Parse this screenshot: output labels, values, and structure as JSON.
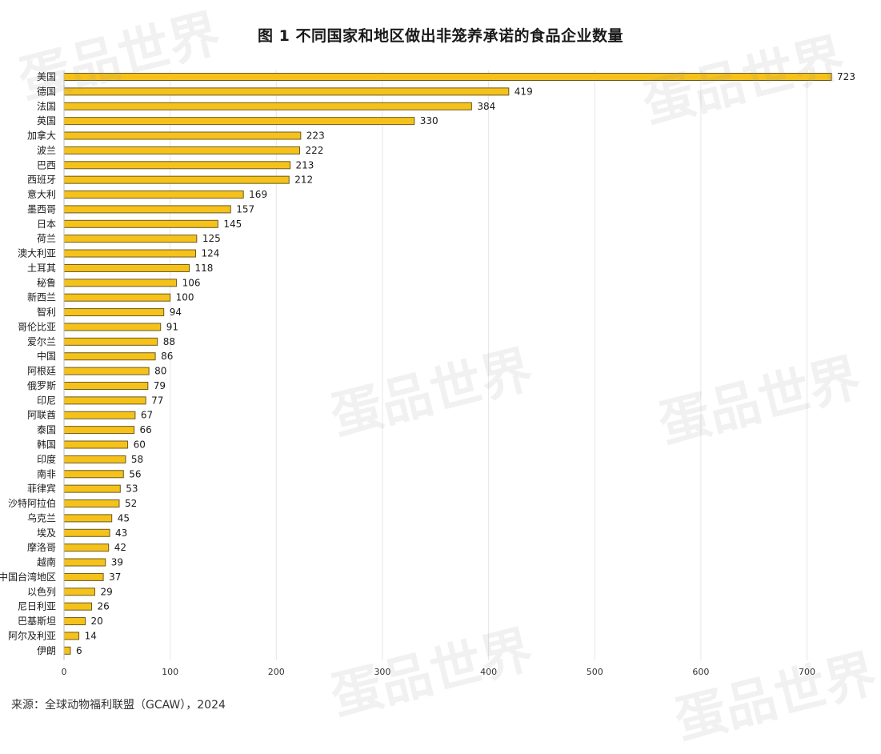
{
  "colors": {
    "bar_fill": "#f5c21b",
    "bar_stroke": "#6b5a1e",
    "grid": "#e6e6e6",
    "text": "#1a1a1a"
  },
  "watermark_text": "蛋品世界",
  "source": "来源：全球动物福利联盟（GCAW），2024",
  "chart_data": {
    "type": "bar",
    "orientation": "horizontal",
    "title": "图 1 不同国家和地区做出非笼养承诺的食品企业数量",
    "xlabel": "",
    "ylabel": "",
    "xlim": [
      0,
      723
    ],
    "xticks": [
      0,
      100,
      200,
      300,
      400,
      500,
      600,
      700
    ],
    "grid": true,
    "categories": [
      "美国",
      "德国",
      "法国",
      "英国",
      "加拿大",
      "波兰",
      "巴西",
      "西班牙",
      "意大利",
      "墨西哥",
      "日本",
      "荷兰",
      "澳大利亚",
      "土耳其",
      "秘鲁",
      "新西兰",
      "智利",
      "哥伦比亚",
      "爱尔兰",
      "中国",
      "阿根廷",
      "俄罗斯",
      "印尼",
      "阿联酋",
      "泰国",
      "韩国",
      "印度",
      "南非",
      "菲律宾",
      "沙特阿拉伯",
      "乌克兰",
      "埃及",
      "摩洛哥",
      "越南",
      "中国台湾地区",
      "以色列",
      "尼日利亚",
      "巴基斯坦",
      "阿尔及利亚",
      "伊朗"
    ],
    "values": [
      723,
      419,
      384,
      330,
      223,
      222,
      213,
      212,
      169,
      157,
      145,
      125,
      124,
      118,
      106,
      100,
      94,
      91,
      88,
      86,
      80,
      79,
      77,
      67,
      66,
      60,
      58,
      56,
      53,
      52,
      45,
      43,
      42,
      39,
      37,
      29,
      26,
      20,
      14,
      6
    ]
  }
}
